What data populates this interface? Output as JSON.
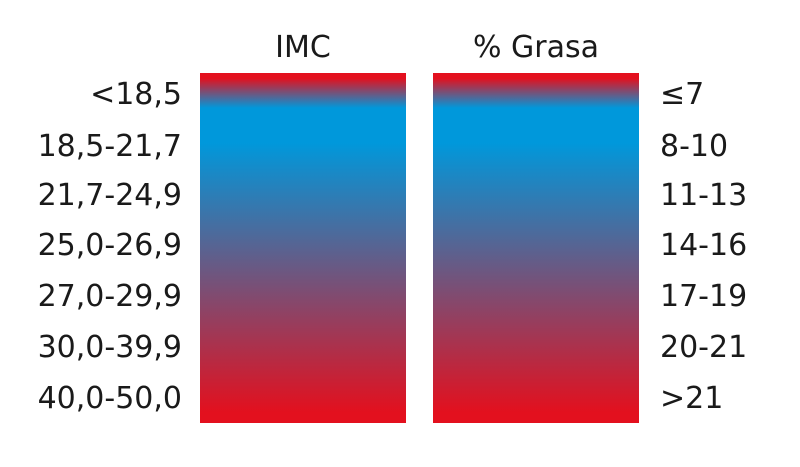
{
  "columns": {
    "imc": {
      "title": "IMC",
      "ranges": [
        "<18,5",
        "18,5-21,7",
        "21,7-24,9",
        "25,0-26,9",
        "27,0-29,9",
        "30,0-39,9",
        "40,0-50,0"
      ]
    },
    "grasa": {
      "title": "% Grasa",
      "ranges": [
        "≤7",
        "8-10",
        "11-13",
        "14-16",
        "17-19",
        "20-21",
        ">21"
      ]
    }
  },
  "colors": {
    "red": "#e3101e",
    "blue": "#0098db",
    "gradient_stops": [
      "#e3101e",
      "#0098db",
      "#0098db",
      "#e3101e"
    ]
  }
}
